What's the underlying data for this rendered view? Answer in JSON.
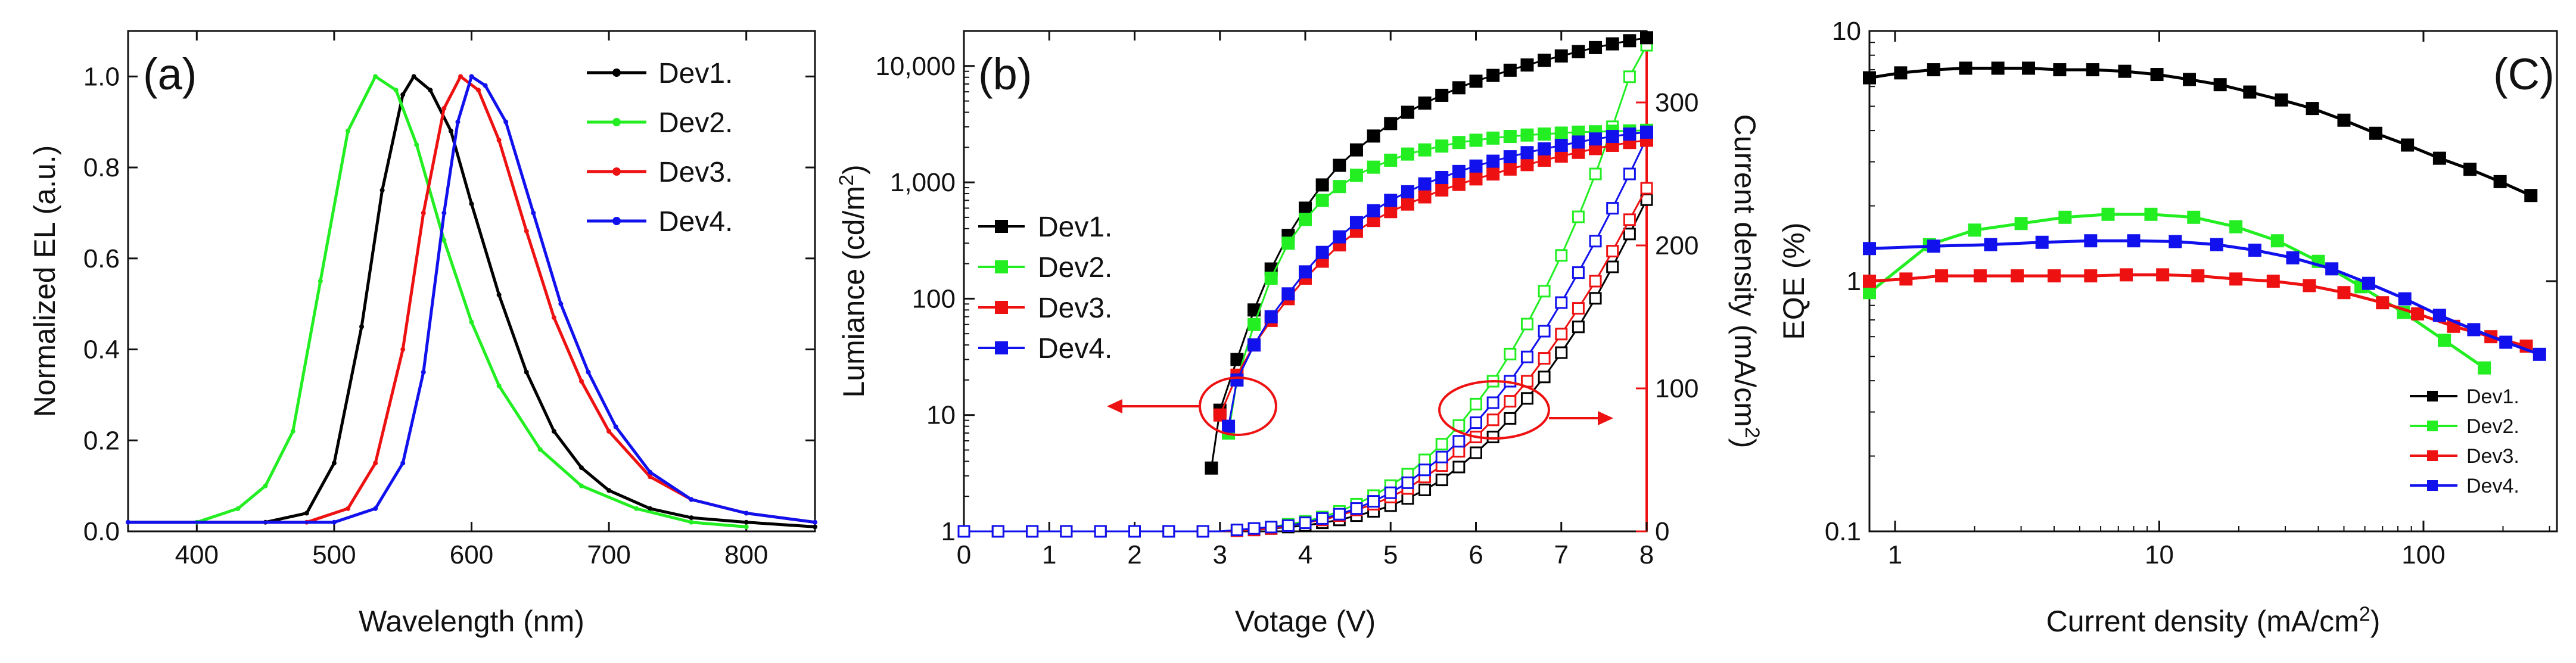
{
  "chart_data": [
    {
      "type": "line",
      "panel_label": "(a)",
      "xlabel": "Wavelength (nm)",
      "ylabel": "Normalized EL (a.u.)",
      "xlim": [
        350,
        850
      ],
      "ylim": [
        0,
        1.1
      ],
      "xticks": [
        400,
        500,
        600,
        700,
        800
      ],
      "yticks": [
        0.0,
        0.2,
        0.4,
        0.6,
        0.8,
        1.0
      ],
      "xtick_labels": [
        "400",
        "500",
        "600",
        "700",
        "800"
      ],
      "ytick_labels": [
        "0.0",
        "0.2",
        "0.4",
        "0.6",
        "0.8",
        "1.0"
      ],
      "legend_position": "top-right",
      "series": [
        {
          "name": "Dev1.",
          "color": "#000000",
          "marker": "dot",
          "x": [
            350,
            450,
            480,
            500,
            520,
            535,
            550,
            558,
            570,
            585,
            600,
            620,
            640,
            660,
            680,
            700,
            730,
            760,
            800,
            850
          ],
          "values": [
            0.02,
            0.02,
            0.04,
            0.15,
            0.45,
            0.75,
            0.96,
            1.0,
            0.97,
            0.88,
            0.72,
            0.52,
            0.35,
            0.22,
            0.14,
            0.09,
            0.05,
            0.03,
            0.02,
            0.01
          ]
        },
        {
          "name": "Dev2.",
          "color": "#22ee22",
          "marker": "dot",
          "x": [
            350,
            400,
            430,
            450,
            470,
            490,
            510,
            530,
            545,
            560,
            580,
            600,
            620,
            650,
            680,
            720,
            760,
            800
          ],
          "values": [
            0.02,
            0.02,
            0.05,
            0.1,
            0.22,
            0.55,
            0.88,
            1.0,
            0.97,
            0.85,
            0.64,
            0.46,
            0.32,
            0.18,
            0.1,
            0.05,
            0.02,
            0.01
          ]
        },
        {
          "name": "Dev3.",
          "color": "#ee1111",
          "marker": "dot",
          "x": [
            350,
            480,
            510,
            530,
            550,
            565,
            580,
            592,
            605,
            620,
            640,
            660,
            680,
            700,
            730,
            760,
            800,
            850
          ],
          "values": [
            0.02,
            0.02,
            0.05,
            0.15,
            0.4,
            0.7,
            0.93,
            1.0,
            0.97,
            0.86,
            0.66,
            0.47,
            0.33,
            0.22,
            0.12,
            0.07,
            0.04,
            0.02
          ]
        },
        {
          "name": "Dev4.",
          "color": "#1111ee",
          "marker": "dot",
          "x": [
            350,
            500,
            530,
            550,
            565,
            580,
            590,
            600,
            610,
            625,
            645,
            665,
            685,
            705,
            730,
            760,
            800,
            850
          ],
          "values": [
            0.02,
            0.02,
            0.05,
            0.15,
            0.35,
            0.7,
            0.9,
            1.0,
            0.98,
            0.9,
            0.7,
            0.5,
            0.35,
            0.23,
            0.13,
            0.07,
            0.04,
            0.02
          ]
        }
      ]
    },
    {
      "type": "scatter",
      "panel_label": "(b)",
      "xlabel": "Votage (V)",
      "ylabel": "Lumiance (cd/m²)",
      "ylabel_right": "Current density (mA/cm²)",
      "xlim": [
        0,
        8
      ],
      "ylim": [
        1,
        20000
      ],
      "ylim_right": [
        0,
        350
      ],
      "yscale": "log",
      "xticks": [
        0,
        1,
        2,
        3,
        4,
        5,
        6,
        7,
        8
      ],
      "xtick_labels": [
        "0",
        "1",
        "2",
        "3",
        "4",
        "5",
        "6",
        "7",
        "8"
      ],
      "yticks": [
        1,
        10,
        100,
        1000,
        10000
      ],
      "ytick_labels": [
        "1",
        "10",
        "100",
        "1,000",
        "10,000"
      ],
      "yticks_right": [
        0,
        100,
        200,
        300
      ],
      "ytick_labels_right": [
        "0",
        "100",
        "200",
        "300"
      ],
      "legend_position": "center-left",
      "arrows": [
        "left arrow: luminance axis",
        "right arrow: current density axis"
      ],
      "luminance_series": [
        {
          "name": "Dev1.",
          "color": "#000000",
          "x": [
            2.9,
            3.0,
            3.2,
            3.4,
            3.6,
            3.8,
            4.0,
            4.2,
            4.4,
            4.6,
            4.8,
            5.0,
            5.2,
            5.4,
            5.6,
            5.8,
            6.0,
            6.2,
            6.4,
            6.6,
            6.8,
            7.0,
            7.2,
            7.4,
            7.6,
            7.8,
            8.0
          ],
          "values": [
            3.5,
            11,
            30,
            80,
            180,
            350,
            600,
            950,
            1400,
            1900,
            2500,
            3200,
            4000,
            4800,
            5600,
            6500,
            7400,
            8300,
            9200,
            10200,
            11200,
            12200,
            13300,
            14400,
            15500,
            16500,
            17500
          ]
        },
        {
          "name": "Dev2.",
          "color": "#22ee22",
          "x": [
            3.1,
            3.2,
            3.4,
            3.6,
            3.8,
            4.0,
            4.2,
            4.4,
            4.6,
            4.8,
            5.0,
            5.2,
            5.4,
            5.6,
            5.8,
            6.0,
            6.2,
            6.4,
            6.6,
            6.8,
            7.0,
            7.2,
            7.4,
            7.6,
            7.8,
            8.0
          ],
          "values": [
            7,
            20,
            60,
            150,
            300,
            480,
            700,
            920,
            1150,
            1350,
            1550,
            1750,
            1900,
            2050,
            2200,
            2300,
            2400,
            2480,
            2550,
            2600,
            2650,
            2700,
            2720,
            2750,
            2770,
            2800
          ]
        },
        {
          "name": "Dev3.",
          "color": "#ee1111",
          "x": [
            3.0,
            3.2,
            3.4,
            3.6,
            3.8,
            4.0,
            4.2,
            4.4,
            4.6,
            4.8,
            5.0,
            5.2,
            5.4,
            5.6,
            5.8,
            6.0,
            6.2,
            6.4,
            6.6,
            6.8,
            7.0,
            7.2,
            7.4,
            7.6,
            7.8,
            8.0
          ],
          "values": [
            10,
            22,
            40,
            65,
            100,
            150,
            210,
            290,
            380,
            470,
            560,
            650,
            750,
            860,
            960,
            1070,
            1180,
            1300,
            1420,
            1550,
            1680,
            1810,
            1950,
            2080,
            2200,
            2300
          ]
        },
        {
          "name": "Dev4.",
          "color": "#1111ee",
          "x": [
            3.1,
            3.2,
            3.4,
            3.6,
            3.8,
            4.0,
            4.2,
            4.4,
            4.6,
            4.8,
            5.0,
            5.2,
            5.4,
            5.6,
            5.8,
            6.0,
            6.2,
            6.4,
            6.6,
            6.8,
            7.0,
            7.2,
            7.4,
            7.6,
            7.8,
            8.0
          ],
          "values": [
            8,
            20,
            40,
            70,
            110,
            170,
            250,
            340,
            450,
            570,
            700,
            830,
            970,
            1100,
            1240,
            1380,
            1520,
            1660,
            1800,
            1940,
            2080,
            2220,
            2360,
            2480,
            2600,
            2700
          ]
        }
      ],
      "current_density_series": [
        {
          "name": "Dev1.",
          "color": "#000000",
          "x": [
            0,
            0.2,
            0.4,
            0.6,
            0.8,
            1.0,
            1.2,
            1.4,
            1.6,
            1.8,
            2.0,
            2.2,
            2.4,
            2.6,
            2.8,
            3.0,
            3.2,
            3.4,
            3.6,
            3.8,
            4.0,
            4.2,
            4.4,
            4.6,
            4.8,
            5.0,
            5.2,
            5.4,
            5.6,
            5.8,
            6.0,
            6.2,
            6.4,
            6.6,
            6.8,
            7.0,
            7.2,
            7.4,
            7.6,
            7.8,
            8.0
          ],
          "values": [
            0,
            0,
            0,
            0,
            0,
            0,
            0,
            0,
            0,
            0,
            0,
            0,
            0,
            0,
            0,
            0,
            0.5,
            1,
            2,
            3,
            4,
            6,
            8,
            11,
            14,
            18,
            23,
            29,
            36,
            45,
            55,
            66,
            79,
            93,
            108,
            125,
            143,
            163,
            185,
            208,
            232
          ]
        },
        {
          "name": "Dev2.",
          "color": "#22ee22",
          "x": [
            0,
            0.2,
            0.4,
            0.6,
            0.8,
            1.0,
            1.2,
            1.4,
            1.6,
            1.8,
            2.0,
            2.2,
            2.4,
            2.6,
            2.8,
            3.0,
            3.2,
            3.4,
            3.6,
            3.8,
            4.0,
            4.2,
            4.4,
            4.6,
            4.8,
            5.0,
            5.2,
            5.4,
            5.6,
            5.8,
            6.0,
            6.2,
            6.4,
            6.6,
            6.8,
            7.0,
            7.2,
            7.4,
            7.6,
            7.8,
            8.0
          ],
          "values": [
            0,
            0,
            0,
            0,
            0,
            0,
            0,
            0,
            0,
            0,
            0,
            0,
            0,
            0,
            0,
            0,
            1,
            2,
            3,
            5,
            7,
            10,
            14,
            19,
            25,
            32,
            40,
            50,
            61,
            74,
            89,
            105,
            124,
            145,
            168,
            193,
            220,
            250,
            283,
            318,
            340
          ]
        },
        {
          "name": "Dev3.",
          "color": "#ee1111",
          "x": [
            0,
            0.2,
            0.4,
            0.6,
            0.8,
            1.0,
            1.2,
            1.4,
            1.6,
            1.8,
            2.0,
            2.2,
            2.4,
            2.6,
            2.8,
            3.0,
            3.2,
            3.4,
            3.6,
            3.8,
            4.0,
            4.2,
            4.4,
            4.6,
            4.8,
            5.0,
            5.2,
            5.4,
            5.6,
            5.8,
            6.0,
            6.2,
            6.4,
            6.6,
            6.8,
            7.0,
            7.2,
            7.4,
            7.6,
            7.8,
            8.0
          ],
          "values": [
            0,
            0,
            0,
            0,
            0,
            0,
            0,
            0,
            0,
            0,
            0,
            0,
            0,
            0,
            0,
            0,
            0.5,
            1,
            2,
            4,
            6,
            8,
            11,
            15,
            19,
            24,
            30,
            38,
            46,
            56,
            66,
            78,
            91,
            105,
            121,
            138,
            156,
            175,
            196,
            218,
            240
          ]
        },
        {
          "name": "Dev4.",
          "color": "#1111ee",
          "x": [
            0,
            0.2,
            0.4,
            0.6,
            0.8,
            1.0,
            1.2,
            1.4,
            1.6,
            1.8,
            2.0,
            2.2,
            2.4,
            2.6,
            2.8,
            3.0,
            3.2,
            3.4,
            3.6,
            3.8,
            4.0,
            4.2,
            4.4,
            4.6,
            4.8,
            5.0,
            5.2,
            5.4,
            5.6,
            5.8,
            6.0,
            6.2,
            6.4,
            6.6,
            6.8,
            7.0,
            7.2,
            7.4,
            7.6,
            7.8,
            8.0
          ],
          "values": [
            0,
            0,
            0,
            0,
            0,
            0,
            0,
            0,
            0,
            0,
            0,
            0,
            0,
            0,
            0,
            0,
            1,
            2,
            3,
            4,
            6,
            9,
            12,
            16,
            21,
            27,
            34,
            43,
            52,
            63,
            76,
            90,
            105,
            122,
            140,
            160,
            181,
            203,
            226,
            250,
            275
          ]
        }
      ]
    },
    {
      "type": "line",
      "panel_label": "(C)",
      "xlabel": "Current density (mA/cm²)",
      "ylabel": "EQE (%)",
      "xscale": "log",
      "yscale": "log",
      "xlim": [
        0.8,
        320
      ],
      "ylim": [
        0.1,
        10
      ],
      "xticks": [
        1,
        10,
        100
      ],
      "xtick_labels": [
        "1",
        "10",
        "100"
      ],
      "yticks": [
        0.1,
        1,
        10
      ],
      "ytick_labels": [
        "0.1",
        "1",
        "10"
      ],
      "legend_position": "bottom-right",
      "series": [
        {
          "name": "Dev1.",
          "color": "#000000",
          "x": [
            0.8,
            1.05,
            1.4,
            1.85,
            2.45,
            3.2,
            4.2,
            5.6,
            7.4,
            9.8,
            13,
            17,
            22,
            29,
            38,
            50,
            66,
            87,
            115,
            150,
            195,
            255
          ],
          "values": [
            6.5,
            6.8,
            7.0,
            7.1,
            7.1,
            7.1,
            7.0,
            7.0,
            6.9,
            6.7,
            6.4,
            6.1,
            5.7,
            5.3,
            4.9,
            4.4,
            3.9,
            3.5,
            3.1,
            2.8,
            2.5,
            2.2
          ]
        },
        {
          "name": "Dev2.",
          "color": "#22ee22",
          "x": [
            0.8,
            1.35,
            2.0,
            3.0,
            4.4,
            6.4,
            9.3,
            13.5,
            19.5,
            28,
            40,
            58,
            84,
            120,
            170
          ],
          "values": [
            0.9,
            1.4,
            1.6,
            1.7,
            1.8,
            1.85,
            1.85,
            1.8,
            1.65,
            1.45,
            1.2,
            0.95,
            0.75,
            0.58,
            0.45
          ]
        },
        {
          "name": "Dev3.",
          "color": "#ee1111",
          "x": [
            0.8,
            1.1,
            1.5,
            2.1,
            2.9,
            4.0,
            5.5,
            7.5,
            10.3,
            14,
            19.5,
            27,
            37,
            50,
            70,
            95,
            130,
            180,
            245
          ],
          "values": [
            1.0,
            1.02,
            1.05,
            1.05,
            1.05,
            1.05,
            1.05,
            1.06,
            1.06,
            1.05,
            1.02,
            1.0,
            0.96,
            0.9,
            0.82,
            0.74,
            0.66,
            0.6,
            0.55
          ]
        },
        {
          "name": "Dev4.",
          "color": "#1111ee",
          "x": [
            0.8,
            1.4,
            2.3,
            3.6,
            5.5,
            8.0,
            11.5,
            16.5,
            23,
            32,
            45,
            62,
            85,
            115,
            155,
            205,
            275
          ],
          "values": [
            1.35,
            1.38,
            1.4,
            1.43,
            1.45,
            1.45,
            1.44,
            1.4,
            1.33,
            1.24,
            1.12,
            0.98,
            0.85,
            0.73,
            0.64,
            0.57,
            0.51
          ]
        }
      ]
    }
  ]
}
